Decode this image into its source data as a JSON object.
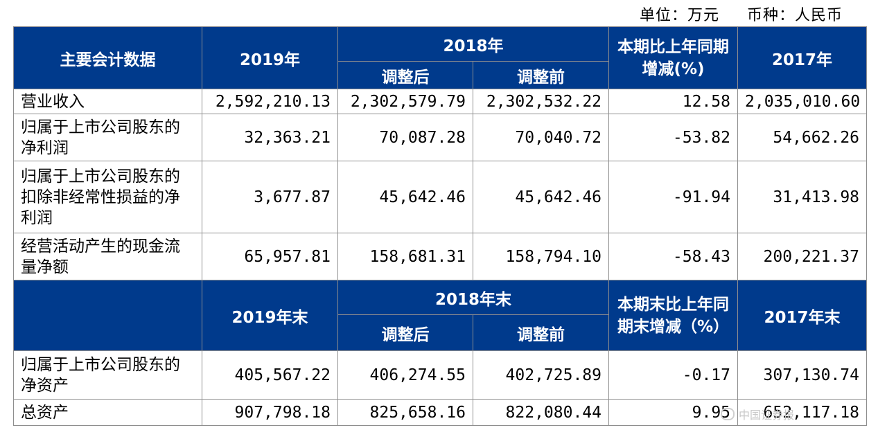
{
  "unit_line": {
    "unit": "单位：万元",
    "currency": "币种：人民币"
  },
  "header1": {
    "item": "主要会计数据",
    "y2019": "2019年",
    "y2018": "2018年",
    "adjusted": "调整后",
    "before": "调整前",
    "change": "本期比上年同期增减(%)",
    "y2017": "2017年"
  },
  "rows1": [
    {
      "label": "营业收入",
      "v2019": "2,592,210.13",
      "adj": "2,302,579.79",
      "pre": "2,302,532.22",
      "chg": "12.58",
      "v2017": "2,035,010.60"
    },
    {
      "label": "归属于上市公司股东的净利润",
      "v2019": "32,363.21",
      "adj": "70,087.28",
      "pre": "70,040.72",
      "chg": "-53.82",
      "v2017": "54,662.26"
    },
    {
      "label": "归属于上市公司股东的扣除非经常性损益的净利润",
      "v2019": "3,677.87",
      "adj": "45,642.46",
      "pre": "45,642.46",
      "chg": "-91.94",
      "v2017": "31,413.98"
    },
    {
      "label": "经营活动产生的现金流量净额",
      "v2019": "65,957.81",
      "adj": "158,681.31",
      "pre": "158,794.10",
      "chg": "-58.43",
      "v2017": "200,221.37"
    }
  ],
  "header2": {
    "item": "",
    "y2019": "2019年末",
    "y2018": "2018年末",
    "adjusted": "调整后",
    "before": "调整前",
    "change": "本期末比上年同期末增减（%）",
    "y2017": "2017年末"
  },
  "rows2": [
    {
      "label": "归属于上市公司股东的净资产",
      "v2019": "405,567.22",
      "adj": "406,274.55",
      "pre": "402,725.89",
      "chg": "-0.17",
      "v2017": "307,130.74"
    },
    {
      "label": "总资产",
      "v2019": "907,798.18",
      "adj": "825,658.16",
      "pre": "822,080.44",
      "chg": "9.95",
      "v2017": "652,117.18"
    }
  ],
  "watermark": {
    "text": "中国证券报"
  },
  "colors": {
    "header_bg": "#003a8c",
    "border": "#8e8e8e"
  }
}
